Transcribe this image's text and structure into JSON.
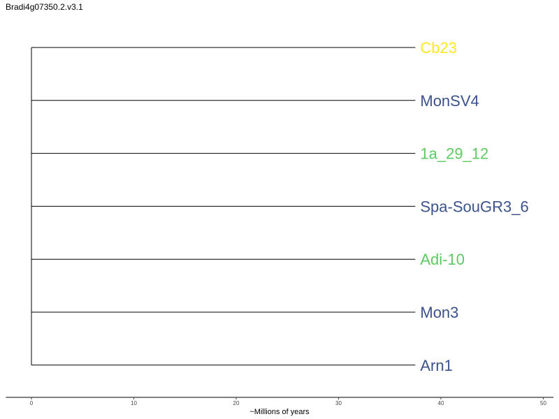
{
  "title": "Bradi4g07350.2.v3.1",
  "tree": {
    "root_x": 0,
    "branch_end_x": 37.5,
    "leaves": [
      {
        "label": "Cb23",
        "color": "#FDE725"
      },
      {
        "label": "MonSV4",
        "color": "#3B528B"
      },
      {
        "label": "1a_29_12",
        "color": "#5EC962"
      },
      {
        "label": "Spa-SouGR3_6",
        "color": "#3B528B"
      },
      {
        "label": "Adi-10",
        "color": "#5EC962"
      },
      {
        "label": "Mon3",
        "color": "#3B528B"
      },
      {
        "label": "Arn1",
        "color": "#3B528B"
      }
    ]
  },
  "axis": {
    "title": "~Millions of years",
    "ticks": [
      0,
      10,
      20,
      30,
      40,
      50
    ],
    "range": [
      -2.5,
      51
    ]
  }
}
